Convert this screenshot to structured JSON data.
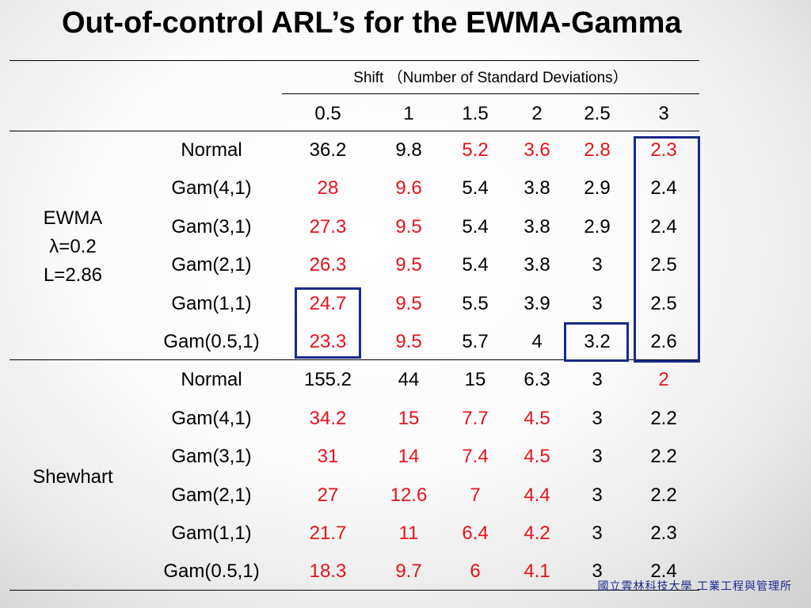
{
  "title": "Out-of-control ARL’s for the EWMA-Gamma",
  "table": {
    "shift_header": "Shift （Number of Standard Deviations）",
    "shifts": [
      "0.5",
      "1",
      "1.5",
      "2",
      "2.5",
      "3"
    ],
    "groups": [
      {
        "name_lines": [
          "EWMA",
          "λ=0.2",
          "L=2.86"
        ],
        "rows": [
          {
            "label": "Normal",
            "values": [
              "36.2",
              "9.8",
              "5.2",
              "3.6",
              "2.8",
              "2.3"
            ],
            "red": [
              false,
              false,
              true,
              true,
              true,
              true
            ]
          },
          {
            "label": "Gam(4,1)",
            "values": [
              "28",
              "9.6",
              "5.4",
              "3.8",
              "2.9",
              "2.4"
            ],
            "red": [
              true,
              true,
              false,
              false,
              false,
              false
            ]
          },
          {
            "label": "Gam(3,1)",
            "values": [
              "27.3",
              "9.5",
              "5.4",
              "3.8",
              "2.9",
              "2.4"
            ],
            "red": [
              true,
              true,
              false,
              false,
              false,
              false
            ]
          },
          {
            "label": "Gam(2,1)",
            "values": [
              "26.3",
              "9.5",
              "5.4",
              "3.8",
              "3",
              "2.5"
            ],
            "red": [
              true,
              true,
              false,
              false,
              false,
              false
            ]
          },
          {
            "label": "Gam(1,1)",
            "values": [
              "24.7",
              "9.5",
              "5.5",
              "3.9",
              "3",
              "2.5"
            ],
            "red": [
              true,
              true,
              false,
              false,
              false,
              false
            ]
          },
          {
            "label": "Gam(0.5,1)",
            "values": [
              "23.3",
              "9.5",
              "5.7",
              "4",
              "3.2",
              "2.6"
            ],
            "red": [
              true,
              true,
              false,
              false,
              false,
              false
            ]
          }
        ]
      },
      {
        "name_lines": [
          "Shewhart"
        ],
        "rows": [
          {
            "label": "Normal",
            "values": [
              "155.2",
              "44",
              "15",
              "6.3",
              "3",
              "2"
            ],
            "red": [
              false,
              false,
              false,
              false,
              false,
              true
            ]
          },
          {
            "label": "Gam(4,1)",
            "values": [
              "34.2",
              "15",
              "7.7",
              "4.5",
              "3",
              "2.2"
            ],
            "red": [
              true,
              true,
              true,
              true,
              false,
              false
            ]
          },
          {
            "label": "Gam(3,1)",
            "values": [
              "31",
              "14",
              "7.4",
              "4.5",
              "3",
              "2.2"
            ],
            "red": [
              true,
              true,
              true,
              true,
              false,
              false
            ]
          },
          {
            "label": "Gam(2,1)",
            "values": [
              "27",
              "12.6",
              "7",
              "4.4",
              "3",
              "2.2"
            ],
            "red": [
              true,
              true,
              true,
              true,
              false,
              false
            ]
          },
          {
            "label": "Gam(1,1)",
            "values": [
              "21.7",
              "11",
              "6.4",
              "4.2",
              "3",
              "2.3"
            ],
            "red": [
              true,
              true,
              true,
              true,
              false,
              false
            ]
          },
          {
            "label": "Gam(0.5,1)",
            "values": [
              "18.3",
              "9.7",
              "6",
              "4.1",
              "3",
              "2.4"
            ],
            "red": [
              true,
              true,
              true,
              true,
              false,
              false
            ]
          }
        ]
      }
    ]
  },
  "colors": {
    "red": "#e8121c",
    "highlight_box": "#1a2a8a",
    "text": "#000000"
  },
  "footer": "國立雲林科技大學 工業工程與管理所"
}
